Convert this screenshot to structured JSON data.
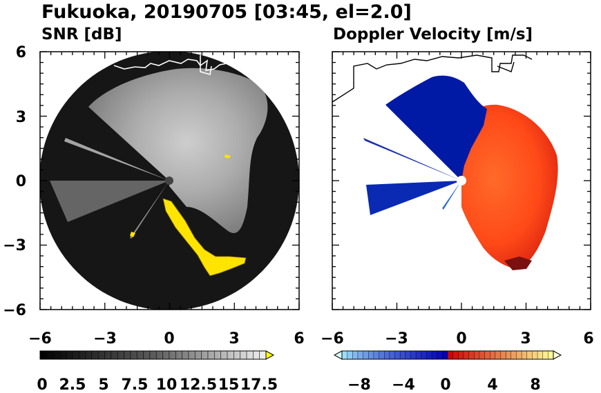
{
  "figure": {
    "title": "Fukuoka, 20190705 [03:45, el=2.0]"
  },
  "chart_data": [
    {
      "type": "heatmap",
      "title": "SNR [dB]",
      "xlim": [
        -6,
        6
      ],
      "ylim": [
        -6,
        6
      ],
      "xticks": [
        "−6",
        "−3",
        "0",
        "3",
        "6"
      ],
      "yticks": [
        "6",
        "3",
        "0",
        "−3",
        "−6"
      ],
      "colorbar": {
        "labels": [
          "0",
          "2.5",
          "5",
          "7.5",
          "10",
          "12.5",
          "15",
          "17.5"
        ],
        "range": [
          0,
          17.5
        ],
        "extend": "max",
        "colors": [
          "#000000",
          "#ffff00"
        ]
      }
    },
    {
      "type": "heatmap",
      "title": "Doppler Velocity [m/s]",
      "xlim": [
        -6,
        6
      ],
      "ylim": [
        -6,
        6
      ],
      "xticks": [
        "−6",
        "−3",
        "0",
        "3",
        "6"
      ],
      "colorbar": {
        "labels": [
          "−8",
          "−4",
          "0",
          "4",
          "8"
        ],
        "range": [
          -10,
          10
        ],
        "extend": "both",
        "colors": [
          "#aaf0ff",
          "#0000b4",
          "#cc0000",
          "#ffff99"
        ]
      }
    }
  ]
}
